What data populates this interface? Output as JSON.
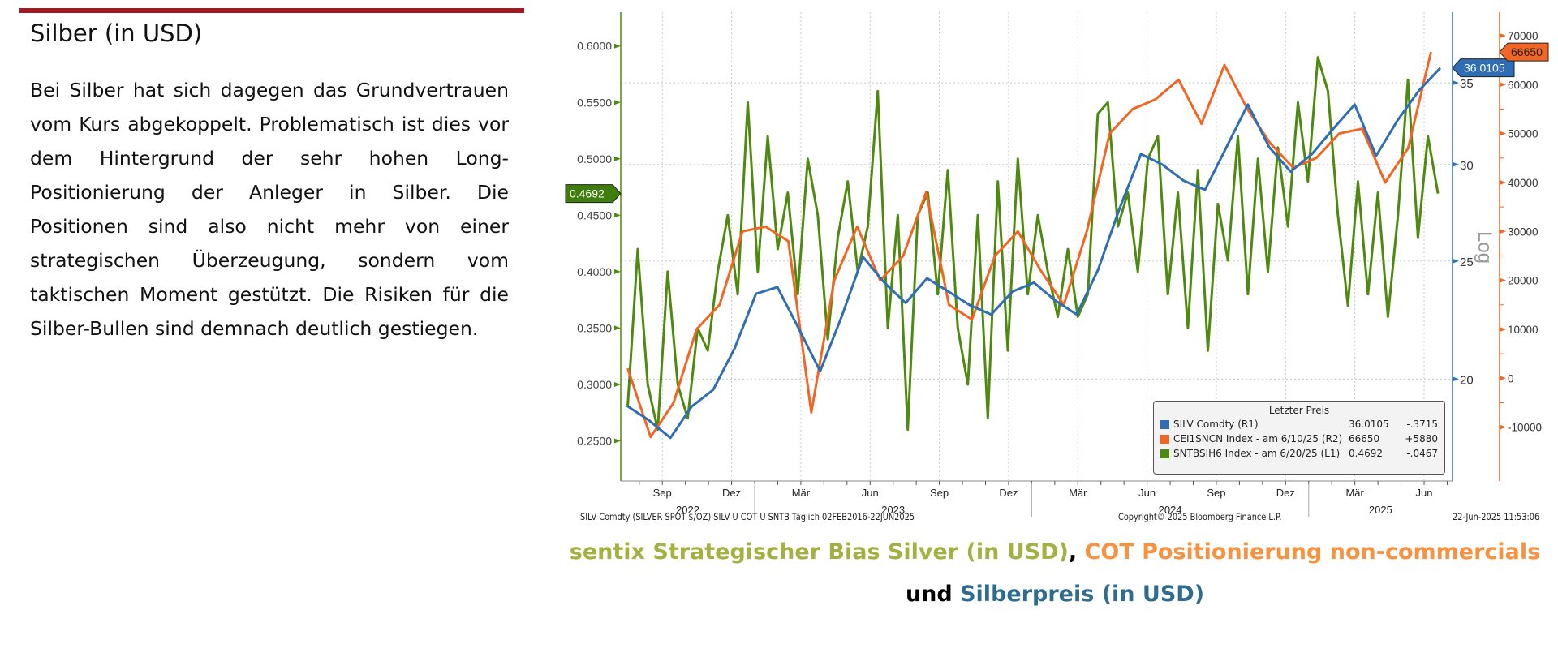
{
  "section": {
    "title": "Silber (in USD)",
    "paragraph": "Bei Silber hat sich dagegen das Grundvertrauen vom Kurs abgekoppelt. Problematisch ist dies vor dem Hintergrund der sehr hohen Long-Positionierung der Anleger in Silber. Die Positionen sind also nicht mehr von einer strategischen Überzeugung, sondern vom taktischen Moment gestützt. Die Risiken für die Silber-Bullen sind demnach deutlich gestiegen."
  },
  "colors": {
    "accent_bar": "#9b1c22",
    "silver": "#2f6db5",
    "cot": "#f26522",
    "sentix": "#4e8a0e"
  },
  "caption": {
    "part1": "sentix Strategischer Bias Silver (in USD)",
    "sep": ",",
    "part2": " COT Positionierung non-commercials",
    "part3": " und ",
    "part4": "Silberpreis (in USD)"
  },
  "footer": {
    "source": "SILV Comdty (SILVER SPOT $/OZ) SILV U COT U SNTB  Täglich 02FEB2016-22JUN2025",
    "copyright": "Copyright© 2025 Bloomberg Finance L.P.",
    "timestamp": "22-Jun-2025 11:53:06"
  },
  "legend": {
    "header": "Letzter Preis",
    "rows": [
      {
        "name": "SILV Comdty  (R1)",
        "value": "36.0105",
        "change": "-.3715"
      },
      {
        "name": "CEI1SNCN Index -  am 6/10/25  (R2)",
        "value": "66650",
        "change": "+5880"
      },
      {
        "name": "SNTBSIH6 Index -  am 6/20/25  (L1)",
        "value": "0.4692",
        "change": "-.0467"
      }
    ]
  },
  "chart_data": {
    "type": "line",
    "title": "",
    "x_unit": "months since Jan 2022",
    "xlim": [
      6.2,
      42.23
    ],
    "x_ticks": [
      {
        "m": 8,
        "label": "Sep"
      },
      {
        "m": 11,
        "label": "Dez"
      },
      {
        "m": 14,
        "label": "Mär"
      },
      {
        "m": 17,
        "label": "Jun"
      },
      {
        "m": 20,
        "label": "Sep"
      },
      {
        "m": 23,
        "label": "Dez"
      },
      {
        "m": 26,
        "label": "Mär"
      },
      {
        "m": 29,
        "label": "Jun"
      },
      {
        "m": 32,
        "label": "Sep"
      },
      {
        "m": 35,
        "label": "Dez"
      },
      {
        "m": 38,
        "label": "Mär"
      },
      {
        "m": 41,
        "label": "Jun"
      }
    ],
    "year_labels": [
      {
        "label": "2022",
        "from": 6.2,
        "to": 12
      },
      {
        "label": "2023",
        "from": 12,
        "to": 24
      },
      {
        "label": "2024",
        "from": 24,
        "to": 36
      },
      {
        "label": "2025",
        "from": 36,
        "to": 42.23
      }
    ],
    "axes": {
      "left": {
        "series": "SNTBSIH6",
        "ylim": [
          0.2144,
          0.63
        ],
        "ticks": [
          "0.2500",
          "0.3000",
          "0.3500",
          "0.4000",
          "0.4500",
          "0.5000",
          "0.5500",
          "0.6000"
        ],
        "last": "0.4692"
      },
      "right1": {
        "series": "SILV",
        "scale": "log",
        "label": "Log",
        "ylim": [
          16.5,
          40.0
        ],
        "ticks": [
          "20",
          "25",
          "30",
          "35"
        ],
        "last": "36.0105"
      },
      "right2": {
        "series": "CEI1SNCN",
        "ylim": [
          -21000,
          74800
        ],
        "ticks": [
          "-10000",
          "0",
          "10000",
          "20000",
          "30000",
          "40000",
          "50000",
          "60000",
          "70000"
        ],
        "last": "66650"
      }
    },
    "series": [
      {
        "name": "SILV Comdty",
        "axis": "right1",
        "x_start": 6.5,
        "x_end": 41.7,
        "values": [
          19.0,
          18.5,
          17.9,
          19.0,
          19.6,
          21.2,
          23.5,
          23.8,
          22.0,
          20.3,
          22.5,
          25.2,
          24.0,
          23.1,
          24.2,
          23.6,
          23.0,
          22.6,
          23.6,
          24.0,
          23.2,
          22.6,
          24.6,
          27.6,
          30.6,
          30.0,
          29.1,
          28.6,
          31.0,
          33.6,
          31.0,
          29.6,
          30.6,
          32.1,
          33.6,
          30.5,
          32.6,
          34.5,
          36.0
        ]
      },
      {
        "name": "CEI1SNCN Index",
        "axis": "right2",
        "x_start": 6.5,
        "x_end": 41.3,
        "values": [
          2000,
          -12000,
          -5000,
          10000,
          15000,
          30000,
          31000,
          28000,
          -7000,
          20000,
          31000,
          20000,
          25000,
          38000,
          15000,
          12000,
          25000,
          30000,
          22000,
          15000,
          30000,
          50000,
          55000,
          57000,
          61000,
          52000,
          64000,
          55000,
          48000,
          43000,
          45000,
          50000,
          51000,
          40000,
          47000,
          66650
        ]
      },
      {
        "name": "SNTBSIH6 Index",
        "axis": "left",
        "x_start": 6.5,
        "x_end": 41.6,
        "values": [
          0.28,
          0.42,
          0.3,
          0.26,
          0.4,
          0.3,
          0.27,
          0.35,
          0.33,
          0.4,
          0.45,
          0.38,
          0.55,
          0.4,
          0.52,
          0.42,
          0.47,
          0.38,
          0.5,
          0.45,
          0.34,
          0.43,
          0.48,
          0.4,
          0.44,
          0.56,
          0.35,
          0.45,
          0.26,
          0.45,
          0.47,
          0.38,
          0.49,
          0.35,
          0.3,
          0.45,
          0.27,
          0.48,
          0.33,
          0.5,
          0.38,
          0.45,
          0.4,
          0.36,
          0.42,
          0.36,
          0.38,
          0.54,
          0.55,
          0.44,
          0.47,
          0.4,
          0.5,
          0.52,
          0.38,
          0.47,
          0.35,
          0.49,
          0.33,
          0.46,
          0.41,
          0.52,
          0.38,
          0.5,
          0.4,
          0.51,
          0.44,
          0.55,
          0.48,
          0.59,
          0.56,
          0.45,
          0.37,
          0.48,
          0.38,
          0.47,
          0.36,
          0.45,
          0.57,
          0.43,
          0.52,
          0.4692
        ]
      }
    ],
    "grid": true,
    "legend_position": "bottom-right"
  }
}
